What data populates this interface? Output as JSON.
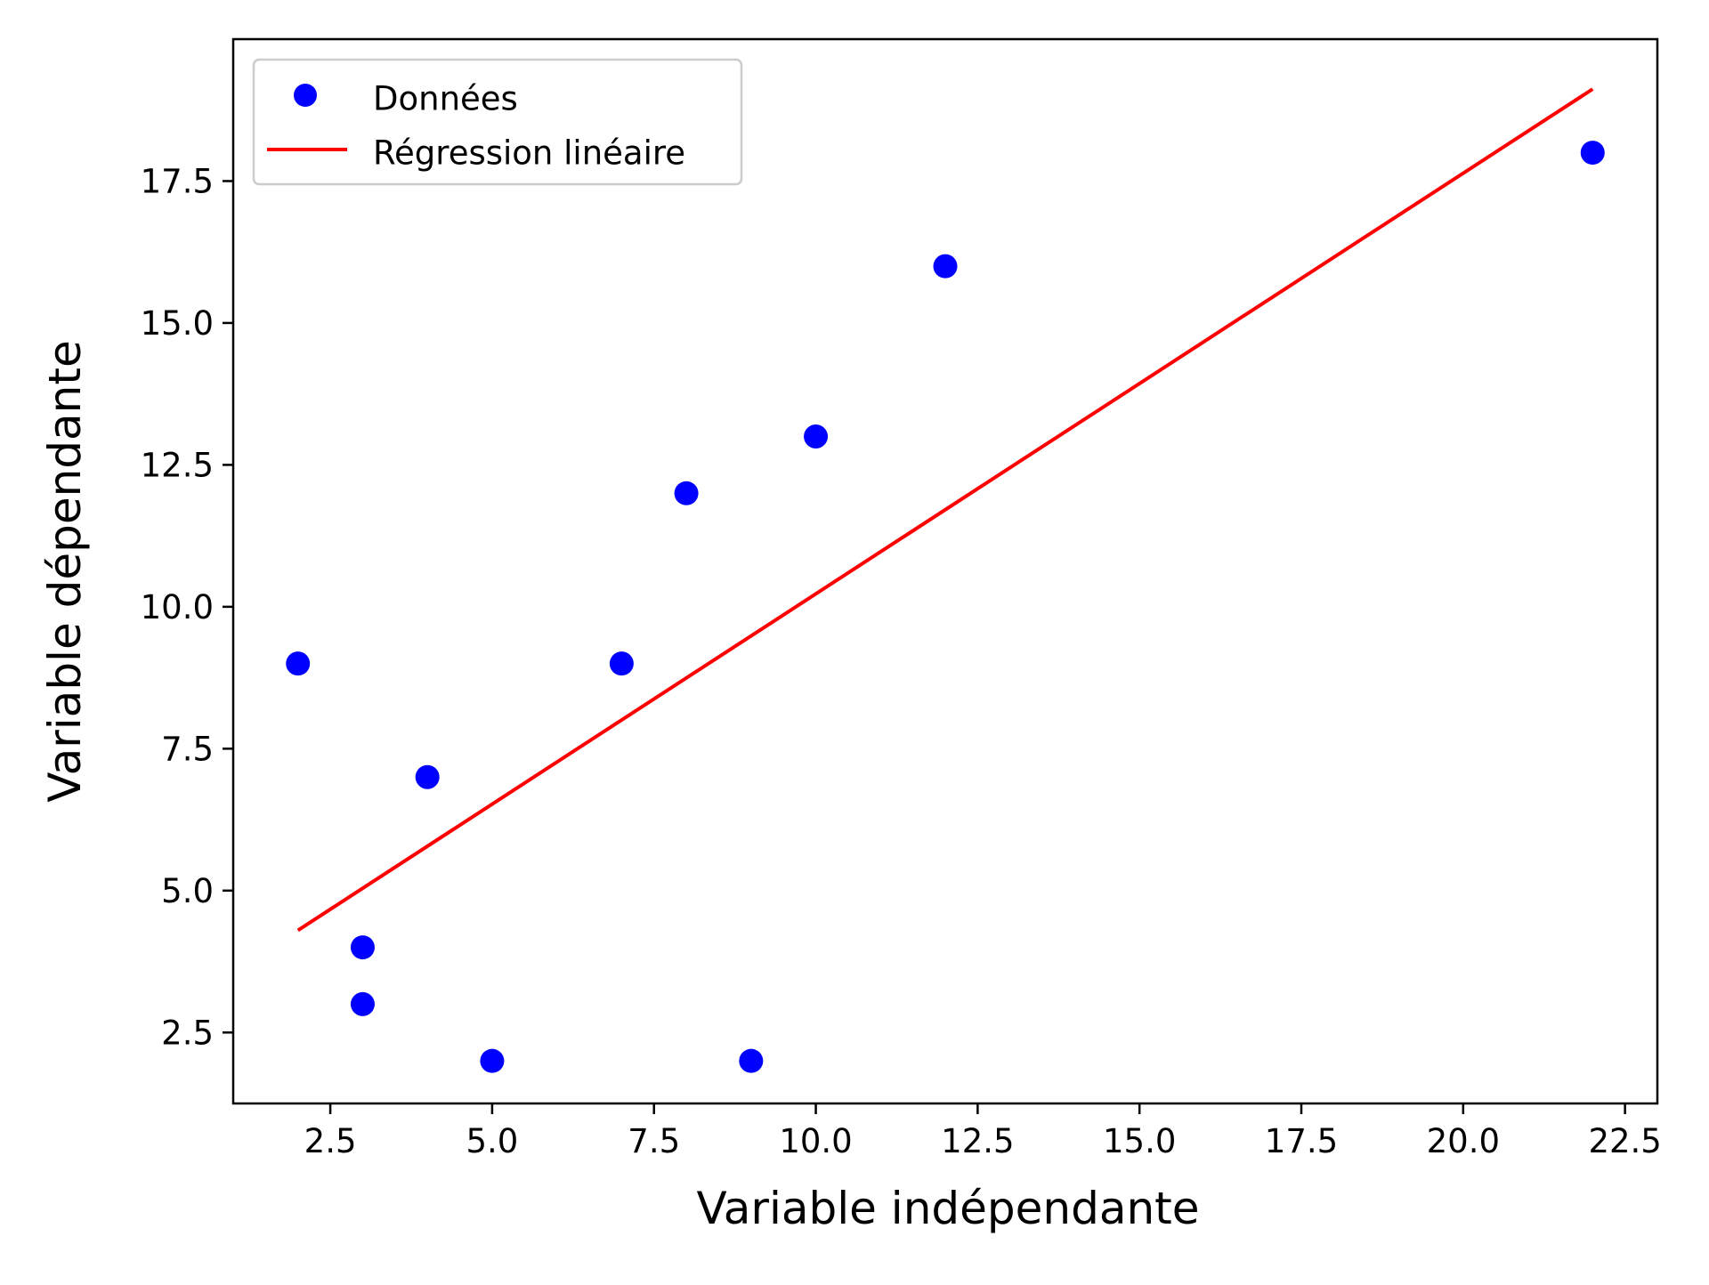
{
  "chart_data": {
    "type": "scatter",
    "title": "",
    "xlabel": "Variable indépendante",
    "ylabel": "Variable dépendante",
    "xlim": [
      1.0,
      23.0
    ],
    "ylim": [
      1.25,
      20.0
    ],
    "xticks": [
      2.5,
      5.0,
      7.5,
      10.0,
      12.5,
      15.0,
      17.5,
      20.0,
      22.5
    ],
    "yticks": [
      2.5,
      5.0,
      7.5,
      10.0,
      12.5,
      15.0,
      17.5
    ],
    "xtick_labels": [
      "2.5",
      "5.0",
      "7.5",
      "10.0",
      "12.5",
      "15.0",
      "17.5",
      "20.0",
      "22.5"
    ],
    "ytick_labels": [
      "2.5",
      "5.0",
      "7.5",
      "10.0",
      "12.5",
      "15.0",
      "17.5"
    ],
    "grid": false,
    "legend_position": "upper-left",
    "series": [
      {
        "name": "Données",
        "kind": "scatter",
        "color": "#0000ff",
        "x": [
          2,
          3,
          3,
          4,
          5,
          7,
          8,
          9,
          10,
          12,
          22
        ],
        "y": [
          9,
          4,
          3,
          7,
          2,
          9,
          12,
          2,
          13,
          16,
          18
        ]
      },
      {
        "name": "Régression linéaire",
        "kind": "line",
        "color": "#ff0000",
        "x": [
          2,
          22
        ],
        "y": [
          4.3,
          19.12
        ]
      }
    ]
  }
}
